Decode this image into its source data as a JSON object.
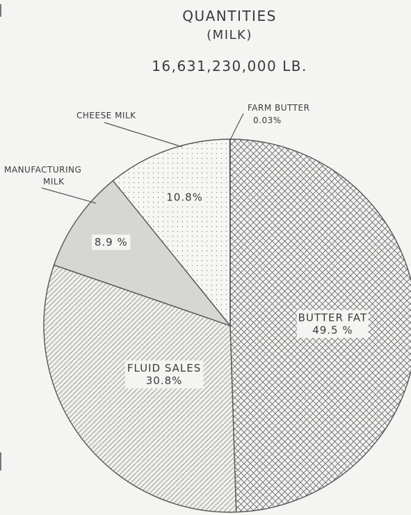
{
  "chart_data": {
    "type": "pie",
    "title": "QUANTITIES",
    "subtitle": "(MILK)",
    "total": "16,631,230,000 LB.",
    "slices": [
      {
        "name": "BUTTER FAT",
        "value": 49.5,
        "label": "49.5 %",
        "pattern": "crosshatch"
      },
      {
        "name": "FLUID SALES",
        "value": 30.8,
        "label": "30.8%",
        "pattern": "diagonal"
      },
      {
        "name": "MANUFACTURING MILK",
        "value": 8.9,
        "label": "8.9 %",
        "pattern": "solid-gray"
      },
      {
        "name": "CHEESE MILK",
        "value": 10.8,
        "label": "10.8%",
        "pattern": "dots"
      },
      {
        "name": "FARM BUTTER",
        "value": 0.03,
        "label": "0.03%",
        "pattern": "none"
      }
    ],
    "callouts": {
      "cheese_milk": "CHEESE MILK",
      "farm_butter": "FARM BUTTER",
      "farm_butter_pct": "0.03%",
      "manufacturing_line1": "MANUFACTURING",
      "manufacturing_line2": "MILK"
    },
    "legend": "none"
  }
}
